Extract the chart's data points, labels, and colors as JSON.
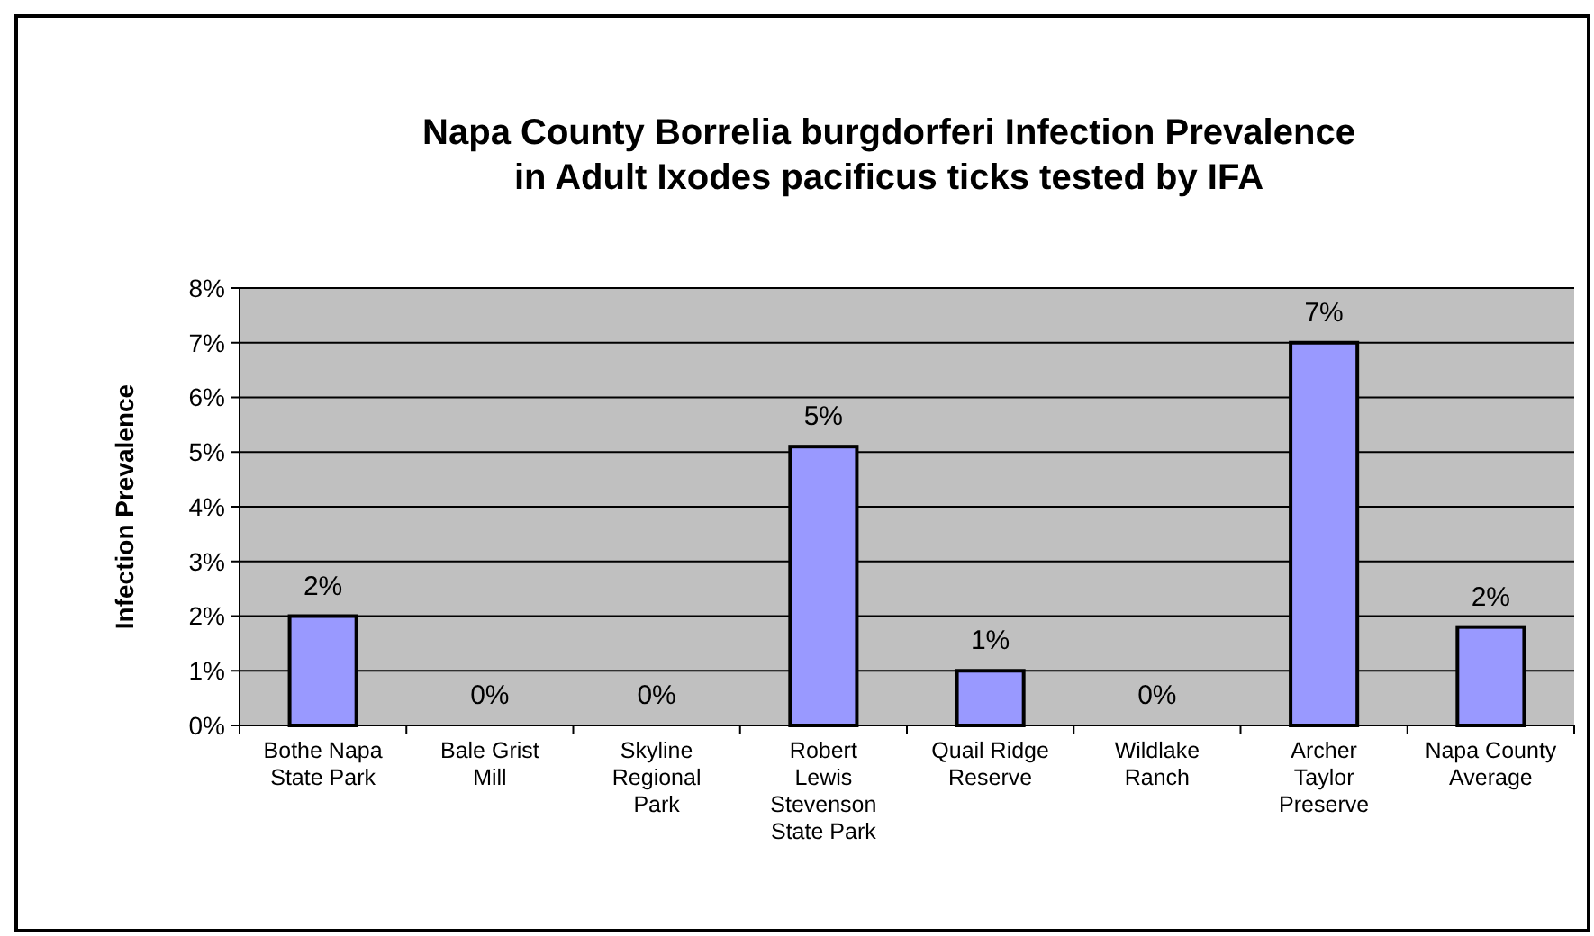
{
  "chart_data": {
    "type": "bar",
    "title": "Napa County Borrelia burgdorferi Infection Prevalence in Adult Ixodes pacificus ticks tested by IFA",
    "ylabel": "Infection Prevalence",
    "categories": [
      "Bothe Napa State Park",
      "Bale Grist Mill",
      "Skyline Regional Park",
      "Robert Lewis Stevenson State Park",
      "Quail Ridge Reserve",
      "Wildlake Ranch",
      "Archer Taylor Preserve",
      "Napa County Average"
    ],
    "values": [
      2.0,
      0,
      0,
      5.1,
      1.0,
      0,
      7.0,
      1.8
    ],
    "value_labels": [
      "2%",
      "0%",
      "0%",
      "5%",
      "1%",
      "0%",
      "7%",
      "2%"
    ],
    "color": "#9999ff",
    "ylim": [
      0,
      8
    ],
    "yticks": [
      {
        "value": 0,
        "label": "0%"
      },
      {
        "value": 1,
        "label": "1%"
      },
      {
        "value": 2,
        "label": "2%"
      },
      {
        "value": 3,
        "label": "3%"
      },
      {
        "value": 4,
        "label": "4%"
      },
      {
        "value": 5,
        "label": "5%"
      },
      {
        "value": 6,
        "label": "6%"
      },
      {
        "value": 7,
        "label": "7%"
      },
      {
        "value": 8,
        "label": "8%"
      }
    ],
    "grid": "y"
  }
}
